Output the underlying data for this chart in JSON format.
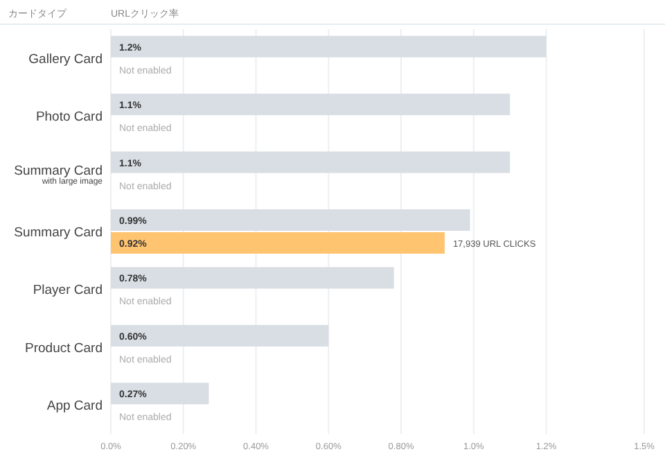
{
  "chart_data": {
    "type": "bar",
    "orientation": "horizontal",
    "xlabel": "URLクリック率",
    "ylabel": "カードタイプ",
    "categories": [
      "Gallery Card",
      "Photo Card",
      "Summary Card\nwith large image",
      "Summary Card",
      "Player Card",
      "Product Card",
      "App Card"
    ],
    "series": [
      {
        "color": "#d8dee3",
        "values": [
          1.2,
          1.1,
          1.1,
          0.99,
          0.78,
          0.6,
          0.27
        ],
        "value_labels": [
          "1.2%",
          "1.1%",
          "1.1%",
          "0.99%",
          "0.78%",
          "0.60%",
          "0.27%"
        ]
      },
      {
        "color": "#ffc470",
        "values": [
          null,
          null,
          null,
          0.92,
          null,
          null,
          null
        ],
        "value_labels": [
          "Not enabled",
          "Not enabled",
          "Not enabled",
          "0.92%",
          "Not enabled",
          "Not enabled",
          "Not enabled"
        ]
      }
    ],
    "xlim": [
      0,
      1.47
    ],
    "xticks": [
      {
        "value": 0,
        "label": "0.0%"
      },
      {
        "value": 0.2,
        "label": "0.20%"
      },
      {
        "value": 0.4,
        "label": "0.40%"
      },
      {
        "value": 0.6,
        "label": "0.60%"
      },
      {
        "value": 0.8,
        "label": "0.80%"
      },
      {
        "value": 1.0,
        "label": "1.0%"
      },
      {
        "value": 1.2,
        "label": "1.2%"
      },
      {
        "value": 1.47,
        "label": "1.5%"
      }
    ],
    "grid": "x",
    "annotations": [
      {
        "text": "17,939 URL CLICKS",
        "x": 0.92,
        "y": "Summary Card"
      }
    ]
  }
}
